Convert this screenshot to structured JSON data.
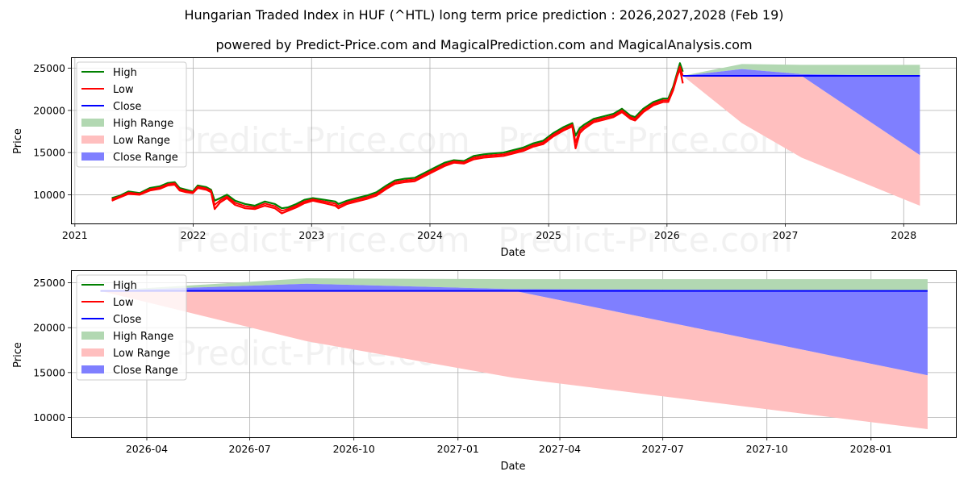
{
  "header": {
    "title": "Hungarian Traded Index in HUF (^HTL) long term price prediction : 2026,2027,2028 (Feb 19)",
    "subtitle": "powered by Predict-Price.com and MagicalPrediction.com and MagicalAnalysis.com"
  },
  "watermark": "Predict-Price.com",
  "colors": {
    "high": "#008000",
    "low": "#ff0000",
    "close": "#0000ff",
    "high_range": "#b2d8b2",
    "low_range": "#ffbfbf",
    "close_range": "#7f7fff",
    "grid": "#b0b0b0"
  },
  "legend": [
    {
      "label": "High",
      "kind": "line",
      "color": "#008000"
    },
    {
      "label": "Low",
      "kind": "line",
      "color": "#ff0000"
    },
    {
      "label": "Close",
      "kind": "line",
      "color": "#0000ff"
    },
    {
      "label": "High Range",
      "kind": "patch",
      "color": "#b2d8b2"
    },
    {
      "label": "Low Range",
      "kind": "patch",
      "color": "#ffbfbf"
    },
    {
      "label": "Close Range",
      "kind": "patch",
      "color": "#7f7fff"
    }
  ],
  "chart_data": [
    {
      "type": "line",
      "title": "Hungarian Traded Index in HUF (^HTL) long term price prediction : 2026,2027,2028 (Feb 19)",
      "xlabel": "Date",
      "ylabel": "Price",
      "x_ticks": [
        "2021",
        "2022",
        "2023",
        "2024",
        "2025",
        "2026",
        "2027",
        "2028"
      ],
      "y_ticks": [
        10000,
        15000,
        20000,
        25000
      ],
      "ylim": [
        6600,
        26300
      ],
      "xlim": [
        "2020-12-20",
        "2028-06-10"
      ],
      "grid": true,
      "legend_position": "upper left",
      "history": {
        "x": [
          "2021-04-25",
          "2021-05-20",
          "2021-06-15",
          "2021-07-20",
          "2021-08-20",
          "2021-09-20",
          "2021-10-15",
          "2021-11-05",
          "2021-11-20",
          "2021-12-10",
          "2021-12-31",
          "2022-01-15",
          "2022-02-10",
          "2022-02-25",
          "2022-03-08",
          "2022-03-25",
          "2022-04-15",
          "2022-05-10",
          "2022-06-10",
          "2022-07-10",
          "2022-08-10",
          "2022-09-10",
          "2022-10-01",
          "2022-10-20",
          "2022-11-15",
          "2022-12-10",
          "2023-01-05",
          "2023-02-10",
          "2023-03-15",
          "2023-03-25",
          "2023-04-20",
          "2023-05-20",
          "2023-06-20",
          "2023-07-20",
          "2023-08-20",
          "2023-09-15",
          "2023-10-15",
          "2023-11-15",
          "2023-12-15",
          "2024-01-15",
          "2024-02-15",
          "2024-03-15",
          "2024-04-15",
          "2024-05-15",
          "2024-06-15",
          "2024-07-15",
          "2024-08-15",
          "2024-09-15",
          "2024-10-15",
          "2024-11-15",
          "2024-12-15",
          "2025-01-15",
          "2025-02-15",
          "2025-03-15",
          "2025-03-25",
          "2025-04-07",
          "2025-04-20",
          "2025-05-20",
          "2025-06-20",
          "2025-07-20",
          "2025-08-15",
          "2025-09-10",
          "2025-09-25",
          "2025-10-20",
          "2025-11-20",
          "2025-12-20",
          "2026-01-05",
          "2026-01-20",
          "2026-02-01",
          "2026-02-10",
          "2026-02-19"
        ],
        "high": [
          9600,
          9900,
          10400,
          10200,
          10800,
          11000,
          11400,
          11500,
          10800,
          10600,
          10400,
          11100,
          10900,
          10600,
          9300,
          9600,
          10000,
          9300,
          8900,
          8700,
          9200,
          8900,
          8400,
          8500,
          8900,
          9400,
          9600,
          9400,
          9200,
          8900,
          9300,
          9600,
          9900,
          10300,
          11100,
          11700,
          11900,
          12000,
          12600,
          13200,
          13800,
          14100,
          14000,
          14600,
          14800,
          14900,
          15000,
          15300,
          15600,
          16100,
          16400,
          17300,
          18000,
          18500,
          17000,
          17900,
          18300,
          19000,
          19300,
          19600,
          20200,
          19400,
          19200,
          20200,
          21000,
          21400,
          21400,
          22800,
          24400,
          25600,
          24600
        ],
        "low": [
          9300,
          9700,
          10100,
          10000,
          10500,
          10700,
          11100,
          11200,
          10500,
          10300,
          10200,
          10800,
          10600,
          10300,
          8300,
          9100,
          9600,
          8800,
          8400,
          8300,
          8700,
          8400,
          7800,
          8100,
          8500,
          9000,
          9300,
          9000,
          8700,
          8400,
          8900,
          9200,
          9500,
          9900,
          10700,
          11300,
          11500,
          11600,
          12200,
          12800,
          13400,
          13800,
          13700,
          14200,
          14400,
          14500,
          14600,
          14900,
          15200,
          15700,
          16000,
          16900,
          17600,
          18100,
          15500,
          17300,
          17800,
          18600,
          18900,
          19200,
          19800,
          19000,
          18800,
          19800,
          20600,
          21000,
          21000,
          22400,
          24000,
          24900,
          23200
        ],
        "close": [
          9450,
          9800,
          10250,
          10100,
          10650,
          10850,
          11250,
          11350,
          10650,
          10450,
          10300,
          10950,
          10750,
          10450,
          8800,
          9350,
          9800,
          9050,
          8650,
          8500,
          8950,
          8650,
          8100,
          8300,
          8700,
          9200,
          9450,
          9200,
          8950,
          8650,
          9100,
          9400,
          9700,
          10100,
          10900,
          11500,
          11700,
          11800,
          12400,
          13000,
          13600,
          13950,
          13850,
          14400,
          14600,
          14700,
          14800,
          15100,
          15400,
          15900,
          16200,
          17100,
          17800,
          18300,
          16200,
          17600,
          18050,
          18800,
          19100,
          19400,
          20000,
          19200,
          19000,
          20000,
          20800,
          21200,
          21200,
          22600,
          24200,
          25200,
          24100
        ]
      },
      "forecast": {
        "x": [
          "2026-02-19",
          "2026-08-20",
          "2027-02-20",
          "2028-02-20"
        ],
        "high_upper": [
          24100,
          25500,
          25400,
          25400
        ],
        "high_lower": [
          24100,
          24900,
          24300,
          24100
        ],
        "close": [
          24100,
          24100,
          24100,
          24100
        ],
        "close_lower": [
          24100,
          24100,
          24100,
          14700
        ],
        "low_upper": [
          24100,
          24100,
          24100,
          14700
        ],
        "low_lower": [
          24100,
          18500,
          14400,
          8700
        ]
      }
    },
    {
      "type": "line",
      "title": "",
      "xlabel": "Date",
      "ylabel": "Price",
      "x_ticks": [
        "2026-04",
        "2026-07",
        "2026-10",
        "2027-01",
        "2027-04",
        "2027-07",
        "2027-10",
        "2028-01"
      ],
      "y_ticks": [
        10000,
        15000,
        20000,
        25000
      ],
      "ylim": [
        7800,
        26400
      ],
      "xlim": [
        "2026-01-24",
        "2028-03-16"
      ],
      "grid": true,
      "legend_position": "upper left",
      "forecast": {
        "x": [
          "2026-02-19",
          "2026-08-20",
          "2027-02-20",
          "2028-02-20"
        ],
        "high_upper": [
          24100,
          25500,
          25400,
          25400
        ],
        "high_lower": [
          24100,
          24900,
          24300,
          24100
        ],
        "close": [
          24100,
          24100,
          24100,
          24100
        ],
        "close_lower": [
          24100,
          24100,
          24100,
          14700
        ],
        "low_upper": [
          24100,
          24100,
          24100,
          14700
        ],
        "low_lower": [
          24100,
          18500,
          14400,
          8700
        ]
      }
    }
  ]
}
